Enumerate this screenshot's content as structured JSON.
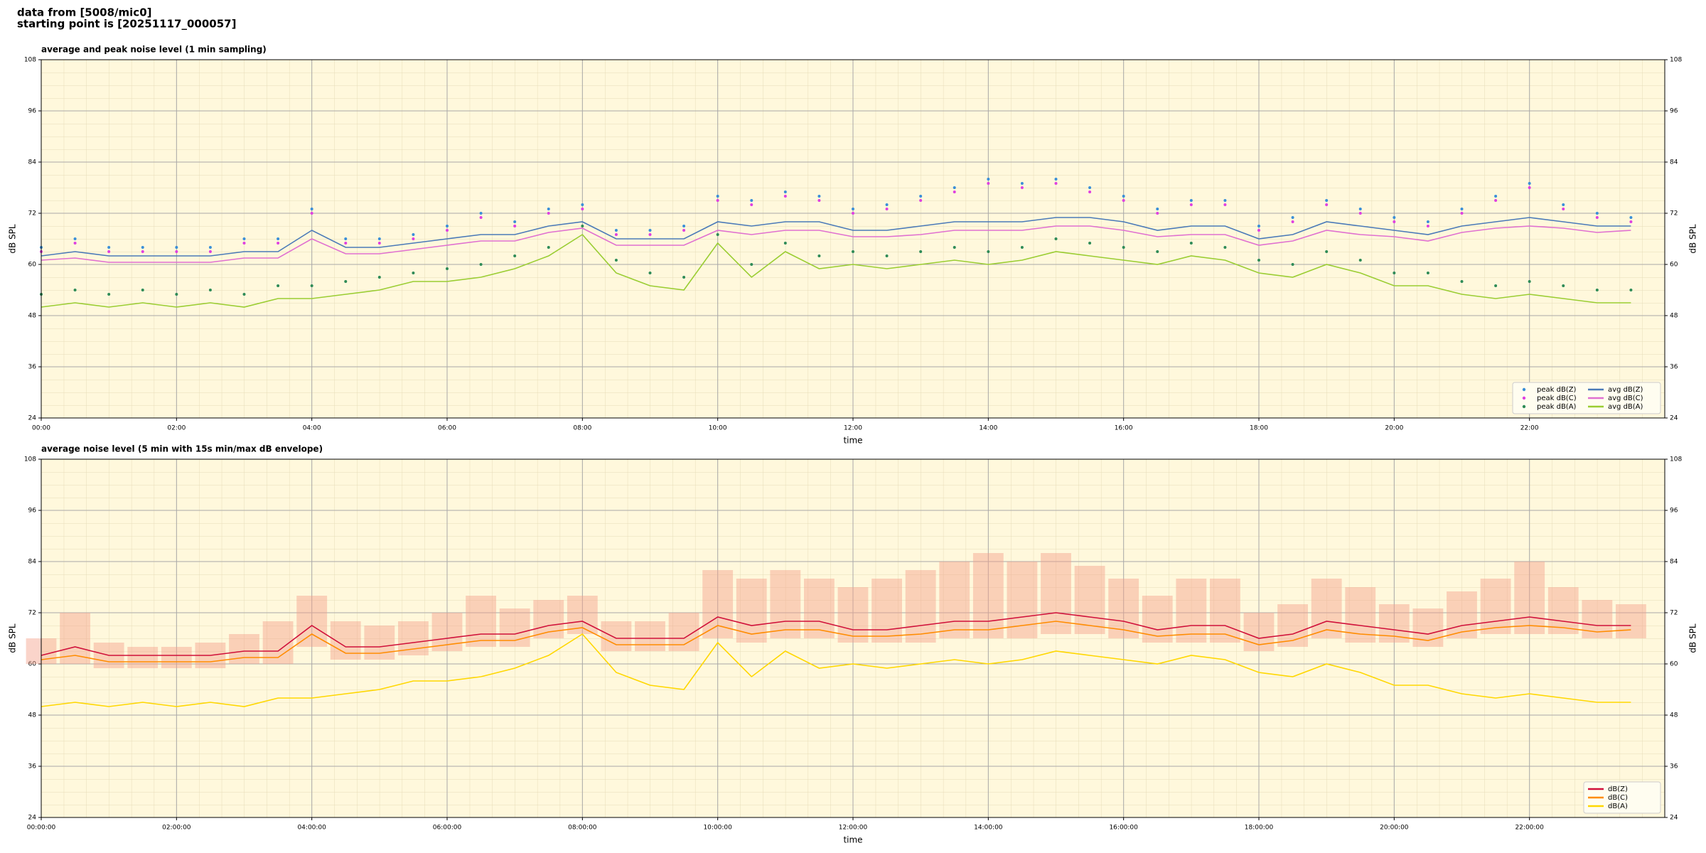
{
  "header": {
    "line1": "data from [5008/mic0]",
    "line2": "starting point is [20251117_000057]"
  },
  "chart_data": [
    {
      "type": "line",
      "title": "average and peak noise level (1 min sampling)",
      "x_label": "time",
      "y_label": "dB SPL",
      "xlim": [
        0,
        24
      ],
      "ylim": [
        24,
        108
      ],
      "xticks": [
        {
          "value": 0,
          "label": "00:00"
        },
        {
          "value": 2,
          "label": "02:00"
        },
        {
          "value": 4,
          "label": "04:00"
        },
        {
          "value": 6,
          "label": "06:00"
        },
        {
          "value": 8,
          "label": "08:00"
        },
        {
          "value": 10,
          "label": "10:00"
        },
        {
          "value": 12,
          "label": "12:00"
        },
        {
          "value": 14,
          "label": "14:00"
        },
        {
          "value": 16,
          "label": "16:00"
        },
        {
          "value": 18,
          "label": "18:00"
        },
        {
          "value": 20,
          "label": "20:00"
        },
        {
          "value": 22,
          "label": "22:00"
        }
      ],
      "yticks": [
        24,
        36,
        48,
        60,
        72,
        84,
        96,
        108
      ],
      "grid": true,
      "legend": "lower right",
      "x": [
        0,
        0.5,
        1,
        1.5,
        2,
        2.5,
        3,
        3.5,
        4,
        4.5,
        5,
        5.5,
        6,
        6.5,
        7,
        7.5,
        8,
        8.5,
        9,
        9.5,
        10,
        10.5,
        11,
        11.5,
        12,
        12.5,
        13,
        13.5,
        14,
        14.5,
        15,
        15.5,
        16,
        16.5,
        17,
        17.5,
        18,
        18.5,
        19,
        19.5,
        20,
        20.5,
        21,
        21.5,
        22,
        22.5,
        23,
        23.5
      ],
      "series": [
        {
          "name": "peak dB(Z)",
          "color": "#3a8fd8",
          "mode": "markers",
          "values": [
            64,
            66,
            64,
            64,
            64,
            64,
            66,
            66,
            73,
            66,
            66,
            67,
            69,
            72,
            70,
            73,
            74,
            68,
            68,
            69,
            76,
            75,
            77,
            76,
            73,
            74,
            76,
            78,
            80,
            79,
            80,
            78,
            76,
            73,
            75,
            75,
            69,
            71,
            75,
            73,
            71,
            70,
            73,
            76,
            79,
            74,
            72,
            71
          ]
        },
        {
          "name": "peak dB(C)",
          "color": "#e040e0",
          "mode": "markers",
          "values": [
            63,
            65,
            63,
            63,
            63,
            63,
            65,
            65,
            72,
            65,
            65,
            66,
            68,
            71,
            69,
            72,
            73,
            67,
            67,
            68,
            75,
            74,
            76,
            75,
            72,
            73,
            75,
            77,
            79,
            78,
            79,
            77,
            75,
            72,
            74,
            74,
            68,
            70,
            74,
            72,
            70,
            69,
            72,
            75,
            78,
            73,
            71,
            70
          ]
        },
        {
          "name": "peak dB(A)",
          "color": "#2e8b57",
          "mode": "markers",
          "values": [
            53,
            54,
            53,
            54,
            53,
            54,
            53,
            55,
            55,
            56,
            57,
            58,
            59,
            60,
            62,
            64,
            69,
            61,
            58,
            57,
            67,
            60,
            65,
            62,
            63,
            62,
            63,
            64,
            63,
            64,
            66,
            65,
            64,
            63,
            65,
            64,
            61,
            60,
            63,
            61,
            58,
            58,
            56,
            55,
            56,
            55,
            54,
            54
          ]
        },
        {
          "name": "avg dB(Z)",
          "color": "#4a7ab8",
          "mode": "lines",
          "values": [
            62,
            63,
            62,
            62,
            62,
            62,
            63,
            63,
            68,
            64,
            64,
            65,
            66,
            67,
            67,
            69,
            70,
            66,
            66,
            66,
            70,
            69,
            70,
            70,
            68,
            68,
            69,
            70,
            70,
            70,
            71,
            71,
            70,
            68,
            69,
            69,
            66,
            67,
            70,
            69,
            68,
            67,
            69,
            70,
            71,
            70,
            69,
            69
          ]
        },
        {
          "name": "avg dB(C)",
          "color": "#e070d0",
          "mode": "lines",
          "values": [
            61,
            61.5,
            60.5,
            60.5,
            60.5,
            60.5,
            61.5,
            61.5,
            66,
            62.5,
            62.5,
            63.5,
            64.5,
            65.5,
            65.5,
            67.5,
            68.5,
            64.5,
            64.5,
            64.5,
            68,
            67,
            68,
            68,
            66.5,
            66.5,
            67,
            68,
            68,
            68,
            69,
            69,
            68,
            66.5,
            67,
            67,
            64.5,
            65.5,
            68,
            67,
            66.5,
            65.5,
            67.5,
            68.5,
            69,
            68.5,
            67.5,
            68
          ]
        },
        {
          "name": "avg dB(A)",
          "color": "#9acd32",
          "mode": "lines",
          "values": [
            50,
            51,
            50,
            51,
            50,
            51,
            50,
            52,
            52,
            53,
            54,
            56,
            56,
            57,
            59,
            62,
            67,
            58,
            55,
            54,
            65,
            57,
            63,
            59,
            60,
            59,
            60,
            61,
            60,
            61,
            63,
            62,
            61,
            60,
            62,
            61,
            58,
            57,
            60,
            58,
            55,
            55,
            53,
            52,
            53,
            52,
            51,
            51
          ]
        }
      ]
    },
    {
      "type": "line",
      "title": "average noise level (5 min with 15s min/max dB envelope)",
      "x_label": "time",
      "y_label": "dB SPL",
      "xlim": [
        0,
        24
      ],
      "ylim": [
        24,
        108
      ],
      "xticks": [
        {
          "value": 0,
          "label": "00:00:00"
        },
        {
          "value": 2,
          "label": "02:00:00"
        },
        {
          "value": 4,
          "label": "04:00:00"
        },
        {
          "value": 6,
          "label": "06:00:00"
        },
        {
          "value": 8,
          "label": "08:00:00"
        },
        {
          "value": 10,
          "label": "10:00:00"
        },
        {
          "value": 12,
          "label": "12:00:00"
        },
        {
          "value": 14,
          "label": "14:00:00"
        },
        {
          "value": 16,
          "label": "16:00:00"
        },
        {
          "value": 18,
          "label": "18:00:00"
        },
        {
          "value": 20,
          "label": "20:00:00"
        },
        {
          "value": 22,
          "label": "22:00:00"
        }
      ],
      "yticks": [
        24,
        36,
        48,
        60,
        72,
        84,
        96,
        108
      ],
      "grid": true,
      "legend": "lower right",
      "x": [
        0,
        0.5,
        1,
        1.5,
        2,
        2.5,
        3,
        3.5,
        4,
        4.5,
        5,
        5.5,
        6,
        6.5,
        7,
        7.5,
        8,
        8.5,
        9,
        9.5,
        10,
        10.5,
        11,
        11.5,
        12,
        12.5,
        13,
        13.5,
        14,
        14.5,
        15,
        15.5,
        16,
        16.5,
        17,
        17.5,
        18,
        18.5,
        19,
        19.5,
        20,
        20.5,
        21,
        21.5,
        22,
        22.5,
        23,
        23.5
      ],
      "envelope": {
        "color": "#f4a08a",
        "low": [
          60,
          60,
          59,
          59,
          59,
          59,
          60,
          60,
          64,
          61,
          61,
          62,
          63,
          64,
          64,
          66,
          67,
          63,
          63,
          63,
          66,
          65,
          66,
          66,
          65,
          65,
          65,
          66,
          66,
          66,
          67,
          67,
          66,
          65,
          65,
          65,
          63,
          64,
          66,
          65,
          65,
          64,
          66,
          67,
          67,
          67,
          66,
          66
        ],
        "high": [
          66,
          72,
          65,
          64,
          64,
          65,
          67,
          70,
          76,
          70,
          69,
          70,
          72,
          76,
          73,
          75,
          76,
          70,
          70,
          72,
          82,
          80,
          82,
          80,
          78,
          80,
          82,
          84,
          86,
          84,
          86,
          83,
          80,
          76,
          80,
          80,
          72,
          74,
          80,
          78,
          74,
          73,
          77,
          80,
          84,
          78,
          75,
          74
        ]
      },
      "series": [
        {
          "name": "dB(Z)",
          "color": "#d0103a",
          "mode": "lines",
          "values": [
            62,
            64,
            62,
            62,
            62,
            62,
            63,
            63,
            69,
            64,
            64,
            65,
            66,
            67,
            67,
            69,
            70,
            66,
            66,
            66,
            71,
            69,
            70,
            70,
            68,
            68,
            69,
            70,
            70,
            71,
            72,
            71,
            70,
            68,
            69,
            69,
            66,
            67,
            70,
            69,
            68,
            67,
            69,
            70,
            71,
            70,
            69,
            69
          ]
        },
        {
          "name": "dB(C)",
          "color": "#ff8c00",
          "mode": "lines",
          "values": [
            61,
            62,
            60.5,
            60.5,
            60.5,
            60.5,
            61.5,
            61.5,
            67,
            62.5,
            62.5,
            63.5,
            64.5,
            65.5,
            65.5,
            67.5,
            68.5,
            64.5,
            64.5,
            64.5,
            69,
            67,
            68,
            68,
            66.5,
            66.5,
            67,
            68,
            68,
            69,
            70,
            69,
            68,
            66.5,
            67,
            67,
            64.5,
            65.5,
            68,
            67,
            66.5,
            65.5,
            67.5,
            68.5,
            69,
            68.5,
            67.5,
            68
          ]
        },
        {
          "name": "dB(A)",
          "color": "#ffd700",
          "mode": "lines",
          "values": [
            50,
            51,
            50,
            51,
            50,
            51,
            50,
            52,
            52,
            53,
            54,
            56,
            56,
            57,
            59,
            62,
            67,
            58,
            55,
            54,
            65,
            57,
            63,
            59,
            60,
            59,
            60,
            61,
            60,
            61,
            63,
            62,
            61,
            60,
            62,
            61,
            58,
            57,
            60,
            58,
            55,
            55,
            53,
            52,
            53,
            52,
            51,
            51
          ]
        }
      ]
    }
  ]
}
